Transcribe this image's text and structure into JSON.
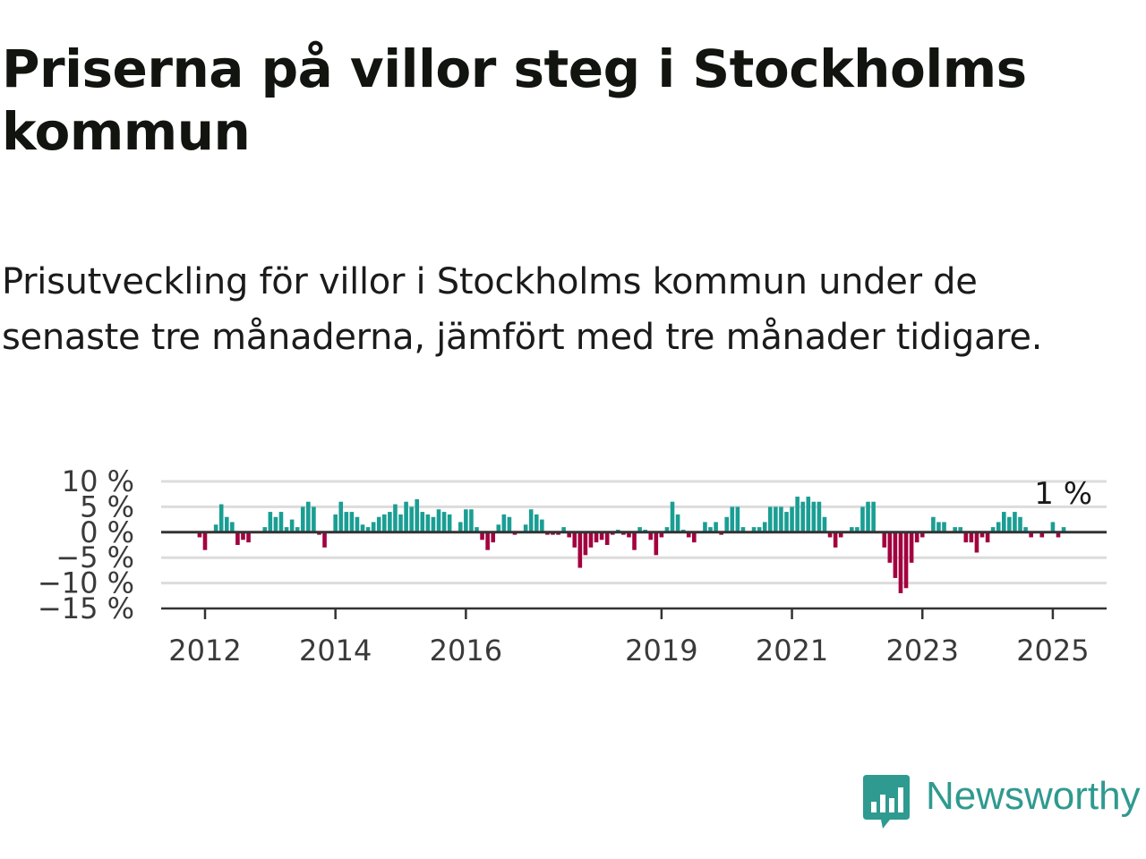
{
  "title": "Priserna på villor steg i Stockholms kommun",
  "subtitle": "Prisutveckling för villor i Stockholms kommun under de senaste tre månaderna, jämfört med tre månader tidigare.",
  "brand": {
    "name": "Newsworthy",
    "icon": "newsworthy-logo-icon",
    "color": "#2f9a8f"
  },
  "colors": {
    "positive": "#1a9e94",
    "negative": "#a3003f",
    "grid": "#dcdcdc",
    "axis": "#333333"
  },
  "chart_data": {
    "type": "bar",
    "x_unit": "month",
    "x_start": "2011-12",
    "ylim": [
      -15,
      10
    ],
    "grid": true,
    "y_ticks": [
      {
        "value": 10,
        "label": "10 %"
      },
      {
        "value": 5,
        "label": "5 %"
      },
      {
        "value": 0,
        "label": "0 %"
      },
      {
        "value": -5,
        "label": "−5 %"
      },
      {
        "value": -10,
        "label": "−10 %"
      },
      {
        "value": -15,
        "label": "−15 %"
      }
    ],
    "x_ticks": [
      {
        "date": "2012-01",
        "label": "2012"
      },
      {
        "date": "2014-01",
        "label": "2014"
      },
      {
        "date": "2016-01",
        "label": "2016"
      },
      {
        "date": "2019-01",
        "label": "2019"
      },
      {
        "date": "2021-01",
        "label": "2021"
      },
      {
        "date": "2023-01",
        "label": "2023"
      },
      {
        "date": "2025-01",
        "label": "2025"
      }
    ],
    "annotation": {
      "label": "1 %",
      "value": 1
    },
    "values": [
      -1,
      -3.5,
      0,
      1.5,
      5.5,
      3,
      2,
      -2.5,
      -1.5,
      -2,
      0,
      0,
      1,
      4,
      3,
      4,
      1,
      2.5,
      1,
      5,
      6,
      5,
      -0.5,
      -3,
      0,
      3.5,
      6,
      4,
      4,
      3,
      1.5,
      1,
      2,
      3,
      3.5,
      4,
      5.5,
      3.5,
      6,
      5,
      6.5,
      4,
      3.5,
      3,
      4.5,
      4,
      3.5,
      0,
      2,
      4.5,
      4.5,
      1,
      -1.5,
      -3.5,
      -2,
      1.5,
      3.5,
      3,
      -0.5,
      0,
      1.5,
      4.5,
      3.5,
      2.5,
      -0.5,
      -0.5,
      -0.5,
      1,
      -1,
      -3,
      -7,
      -4.5,
      -3,
      -2,
      -1.5,
      -2.5,
      -0.5,
      0.5,
      -0.5,
      -1,
      -3.5,
      1,
      0.5,
      -1.5,
      -4.5,
      -1,
      1,
      6,
      3.5,
      0.5,
      -1,
      -2,
      0,
      2,
      1,
      2,
      -0.5,
      3,
      5,
      5,
      1,
      0,
      1,
      1,
      2,
      5,
      5,
      5,
      4,
      5,
      7,
      6,
      7,
      6,
      6,
      3,
      -1,
      -3,
      -1,
      0,
      1,
      1,
      5,
      6,
      6,
      0,
      -3,
      -6,
      -9,
      -12,
      -11,
      -6,
      -2,
      -1,
      0,
      3,
      2,
      2,
      0,
      1,
      1,
      -2,
      -2,
      -4,
      -1,
      -2,
      1,
      2,
      4,
      3,
      4,
      3,
      1,
      -1,
      0,
      -1,
      0,
      2,
      -1,
      1
    ]
  }
}
